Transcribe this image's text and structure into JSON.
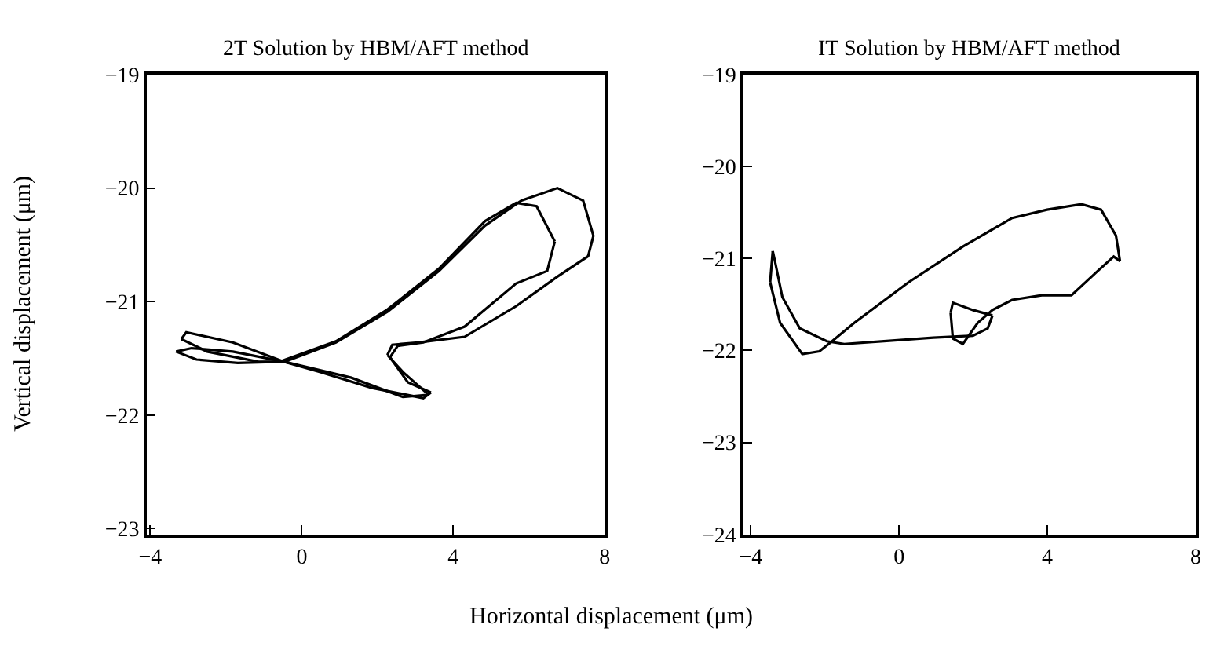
{
  "chart_data": [
    {
      "type": "line",
      "title": "2T Solution by HBM/AFT method",
      "xlabel": "Horizontal displacement (μm)",
      "ylabel": "Vertical displacement (μm)",
      "xlim": [
        -4.1,
        8
      ],
      "ylim": [
        -23.05,
        -19
      ],
      "xticks": [
        {
          "value": -4,
          "label": "−4"
        },
        0,
        4,
        8
      ],
      "yticks": [
        {
          "value": -19,
          "label": "−19"
        },
        {
          "value": -20,
          "label": "−20"
        },
        {
          "value": -21,
          "label": "−21"
        },
        {
          "value": -22,
          "label": "−22"
        },
        {
          "value": -23,
          "label": "−23"
        }
      ],
      "marker": "none",
      "line_style": "solid",
      "series": [
        {
          "color": "#000000",
          "x": [
            -0.46,
            0.9,
            2.26,
            3.62,
            4.84,
            5.8,
            6.75,
            7.43,
            7.7,
            null,
            7.7,
            7.56,
            6.75,
            5.66,
            4.3,
            3.07,
            2.39,
            2.26,
            null,
            2.26,
            2.67,
            3.35,
            null,
            3.35,
            2.67,
            1.31,
            -0.46,
            -1.82,
            -2.91,
            -3.32,
            null,
            -3.32,
            -2.78,
            -1.69,
            -0.6,
            0.9,
            2.26,
            3.62,
            4.84,
            5.66,
            6.2,
            6.68,
            null,
            6.68,
            6.48,
            5.66,
            4.3,
            3.21,
            2.53,
            2.33,
            null,
            2.33,
            2.8,
            3.41,
            null,
            3.41,
            3.21,
            1.85,
            0.49,
            -0.46,
            -1.82,
            -3.05,
            -3.18,
            null,
            -3.18,
            -2.5,
            -1.14,
            -0.46
          ],
          "values": [
            -21.53,
            -21.36,
            -21.09,
            -20.73,
            -20.33,
            -20.11,
            -20.0,
            -20.11,
            -20.42,
            null,
            -20.42,
            -20.6,
            -20.78,
            -21.04,
            -21.31,
            -21.36,
            -21.38,
            -21.47,
            null,
            -21.47,
            -21.62,
            -21.82,
            null,
            -21.82,
            -21.84,
            -21.67,
            -21.53,
            -21.44,
            -21.41,
            -21.44,
            null,
            -21.44,
            -21.51,
            -21.54,
            -21.53,
            -21.35,
            -21.07,
            -20.71,
            -20.29,
            -20.13,
            -20.16,
            -20.47,
            null,
            -20.47,
            -20.73,
            -20.84,
            -21.22,
            -21.36,
            -21.39,
            -21.49,
            null,
            -21.49,
            -21.71,
            -21.8,
            null,
            -21.8,
            -21.85,
            -21.76,
            -21.62,
            -21.53,
            -21.36,
            -21.27,
            -21.33,
            null,
            -21.33,
            -21.44,
            -21.53,
            -21.53
          ]
        }
      ]
    },
    {
      "type": "line",
      "title": "IT Solution by HBM/AFT method",
      "xlim": [
        -4.2,
        8
      ],
      "ylim": [
        -24,
        -19
      ],
      "xticks": [
        {
          "value": -4,
          "label": "−4"
        },
        0,
        4,
        8
      ],
      "yticks": [
        {
          "value": -19,
          "label": "−19"
        },
        {
          "value": -20,
          "label": "−20"
        },
        {
          "value": -21,
          "label": "−21"
        },
        {
          "value": -22,
          "label": "−22"
        },
        {
          "value": -23,
          "label": "−23"
        },
        {
          "value": -24,
          "label": "−24"
        }
      ],
      "marker": "none",
      "line_style": "solid",
      "series": [
        {
          "color": "#000000",
          "x": [
            -3.41,
            -3.48,
            null,
            -3.48,
            -3.21,
            -2.61,
            -2.15,
            -1.81,
            -1.21,
            0.25,
            1.72,
            3.05,
            3.99,
            4.92,
            5.45,
            5.85,
            5.96,
            null,
            5.96,
            5.79,
            5.32,
            4.65,
            3.85,
            3.05,
            2.52,
            2.12,
            1.72,
            1.45,
            1.39,
            null,
            1.39,
            1.45,
            1.99,
            2.52,
            null,
            2.52,
            2.39,
            1.99,
            0.92,
            -0.41,
            -1.48,
            -1.95,
            -2.68,
            -3.15,
            -3.35,
            -3.41
          ],
          "values": [
            -20.92,
            -21.26,
            null,
            -21.26,
            -21.7,
            -22.04,
            -22.01,
            -21.9,
            -21.7,
            -21.26,
            -20.87,
            -20.56,
            -20.47,
            -20.41,
            -20.47,
            -20.75,
            -21.03,
            null,
            -21.03,
            -20.98,
            -21.15,
            -21.4,
            -21.4,
            -21.45,
            -21.56,
            -21.7,
            -21.93,
            -21.87,
            -21.59,
            null,
            -21.59,
            -21.48,
            -21.56,
            -21.62,
            null,
            -21.62,
            -21.76,
            -21.84,
            -21.86,
            -21.9,
            -21.93,
            -21.9,
            -21.76,
            -21.42,
            -21.03,
            -20.92
          ]
        }
      ]
    }
  ]
}
